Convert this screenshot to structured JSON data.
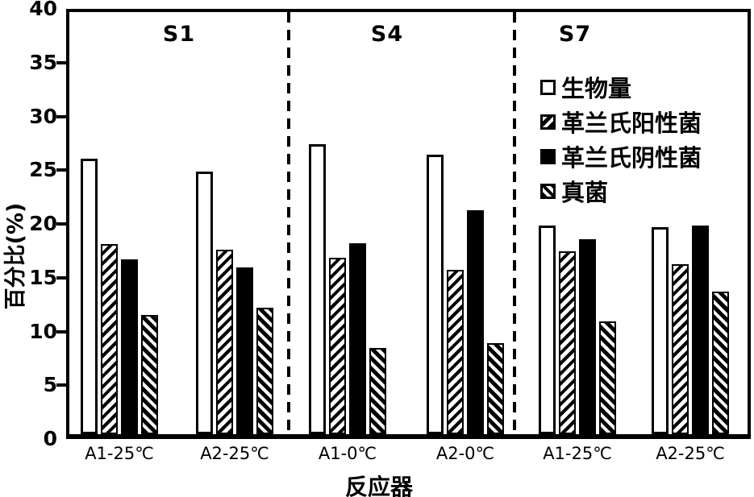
{
  "chart_data": {
    "type": "bar",
    "title": "",
    "xlabel": "反应器",
    "ylabel": "百分比(%)",
    "ylim": [
      0,
      40
    ],
    "yticks": [
      0,
      5,
      10,
      15,
      20,
      25,
      30,
      35,
      40
    ],
    "grid": false,
    "legend_position": "top-right-inside",
    "colors": {
      "foreground": "#000000",
      "background": "#ffffff"
    },
    "categories": [
      "A1-25℃",
      "A2-25℃",
      "A1-0℃",
      "A2-0℃",
      "A1-25℃",
      "A2-25℃"
    ],
    "sections": [
      {
        "label": "S1",
        "category_indices": [
          0,
          1
        ]
      },
      {
        "label": "S4",
        "category_indices": [
          2,
          3
        ]
      },
      {
        "label": "S7",
        "category_indices": [
          4,
          5
        ]
      }
    ],
    "series": [
      {
        "name": "生物量",
        "pattern": "open-white",
        "values": [
          26.1,
          24.9,
          27.5,
          26.5,
          19.8,
          19.6
        ]
      },
      {
        "name": "革兰氏阳性菌",
        "pattern": "diagonal-hatch-forward",
        "values": [
          18.0,
          17.5,
          16.7,
          15.6,
          17.3,
          16.1
        ]
      },
      {
        "name": "革兰氏阴性菌",
        "pattern": "solid-black",
        "values": [
          16.6,
          15.8,
          18.1,
          21.2,
          18.5,
          19.8
        ]
      },
      {
        "name": "真菌",
        "pattern": "diagonal-hatch-back",
        "values": [
          11.3,
          12.0,
          8.2,
          8.6,
          10.7,
          13.5
        ]
      }
    ]
  }
}
